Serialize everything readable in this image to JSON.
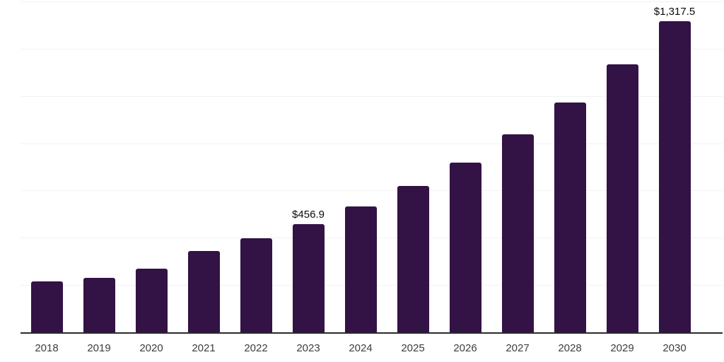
{
  "chart_data": {
    "type": "bar",
    "title": "",
    "xlabel": "",
    "ylabel": "",
    "categories": [
      "2018",
      "2019",
      "2020",
      "2021",
      "2022",
      "2023",
      "2024",
      "2025",
      "2026",
      "2027",
      "2028",
      "2029",
      "2030"
    ],
    "values": [
      215.0,
      229.0,
      270.0,
      343.0,
      397.0,
      456.9,
      531.6,
      618.4,
      719.5,
      837.1,
      973.8,
      1132.9,
      1317.5
    ],
    "data_labels": {
      "2023": "$456.9",
      "2030": "$1,317.5"
    },
    "ylim": [
      0,
      1400
    ],
    "gridline_step": 200,
    "grid": true,
    "legend_position": "none",
    "y_axis_tick_labels_visible": false,
    "bar_color": "#331245",
    "gridline_color": "#f2f2f2",
    "axis_line_color": "#2b2b2b",
    "tick_label_color": "#3d3d3d",
    "data_label_color": "#0a0a0a"
  }
}
